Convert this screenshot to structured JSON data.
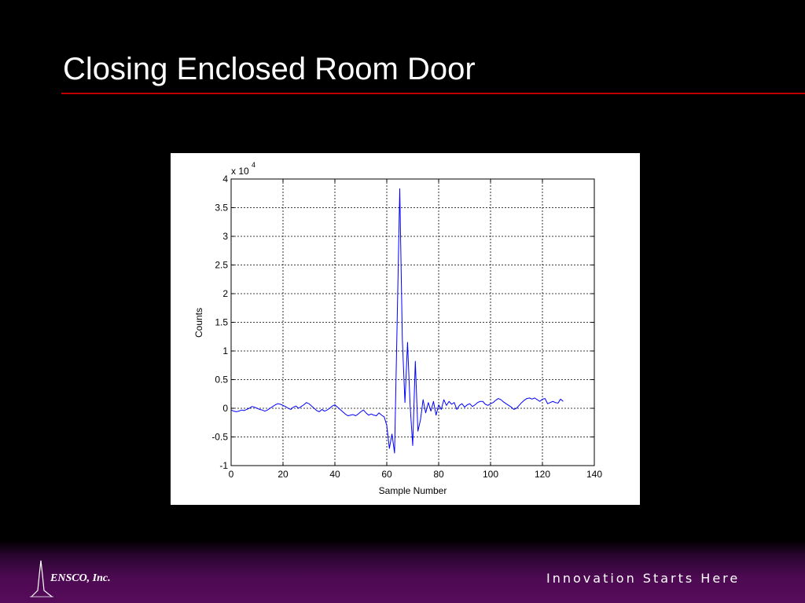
{
  "slide": {
    "title": "Closing Enclosed Room Door",
    "company": "ENSCO, Inc.",
    "tagline": "Innovation Starts Here"
  },
  "colors": {
    "background": "#000000",
    "title_rule": "#c00000",
    "footer_band": "#560b5b",
    "series_line": "#0000ff"
  },
  "logo": {
    "icon": "ensco-waveform-logo"
  },
  "chart_data": {
    "type": "line",
    "title": "",
    "xlabel": "Sample Number",
    "ylabel": "Counts",
    "y_exponent_label": "x 10",
    "y_exponent_power": "4",
    "y_scale": 10000,
    "xlim": [
      0,
      140
    ],
    "ylim": [
      -1,
      4
    ],
    "x_ticks": [
      "0",
      "20",
      "40",
      "60",
      "80",
      "100",
      "120",
      "140"
    ],
    "y_ticks": [
      "-1",
      "-0.5",
      "0",
      "0.5",
      "1",
      "1.5",
      "2",
      "2.5",
      "3",
      "3.5",
      "4"
    ],
    "grid": true,
    "legend": "none",
    "x_start": 0,
    "x_step": 1,
    "series": [
      {
        "values": [
          -0.03,
          -0.05,
          -0.06,
          -0.05,
          -0.03,
          -0.04,
          -0.02,
          0.0,
          0.03,
          0.02,
          0.0,
          -0.02,
          -0.03,
          -0.05,
          -0.03,
          0.0,
          0.03,
          0.06,
          0.08,
          0.07,
          0.05,
          0.03,
          0.0,
          -0.02,
          0.02,
          0.04,
          0.0,
          0.03,
          0.06,
          0.1,
          0.08,
          0.04,
          0.0,
          -0.04,
          -0.06,
          -0.02,
          -0.05,
          -0.03,
          0.0,
          0.04,
          0.06,
          0.02,
          -0.02,
          -0.06,
          -0.1,
          -0.13,
          -0.12,
          -0.11,
          -0.13,
          -0.1,
          -0.06,
          -0.03,
          -0.08,
          -0.12,
          -0.1,
          -0.12,
          -0.13,
          -0.08,
          -0.12,
          -0.15,
          -0.3,
          -0.7,
          -0.45,
          -0.78,
          1.5,
          3.83,
          1.2,
          0.1,
          1.15,
          0.05,
          -0.65,
          0.82,
          -0.4,
          -0.2,
          0.15,
          -0.08,
          0.1,
          -0.05,
          0.12,
          -0.12,
          0.06,
          -0.02,
          0.15,
          0.05,
          0.12,
          0.07,
          0.1,
          -0.02,
          0.05,
          0.08,
          0.02,
          0.06,
          0.08,
          0.03,
          0.06,
          0.1,
          0.12,
          0.12,
          0.07,
          0.05,
          0.08,
          0.1,
          0.14,
          0.17,
          0.15,
          0.11,
          0.08,
          0.05,
          0.02,
          -0.02,
          0.0,
          0.05,
          0.1,
          0.14,
          0.17,
          0.18,
          0.16,
          0.18,
          0.15,
          0.12,
          0.16,
          0.17,
          0.08,
          0.1,
          0.12,
          0.1,
          0.09,
          0.16,
          0.12
        ]
      }
    ]
  }
}
